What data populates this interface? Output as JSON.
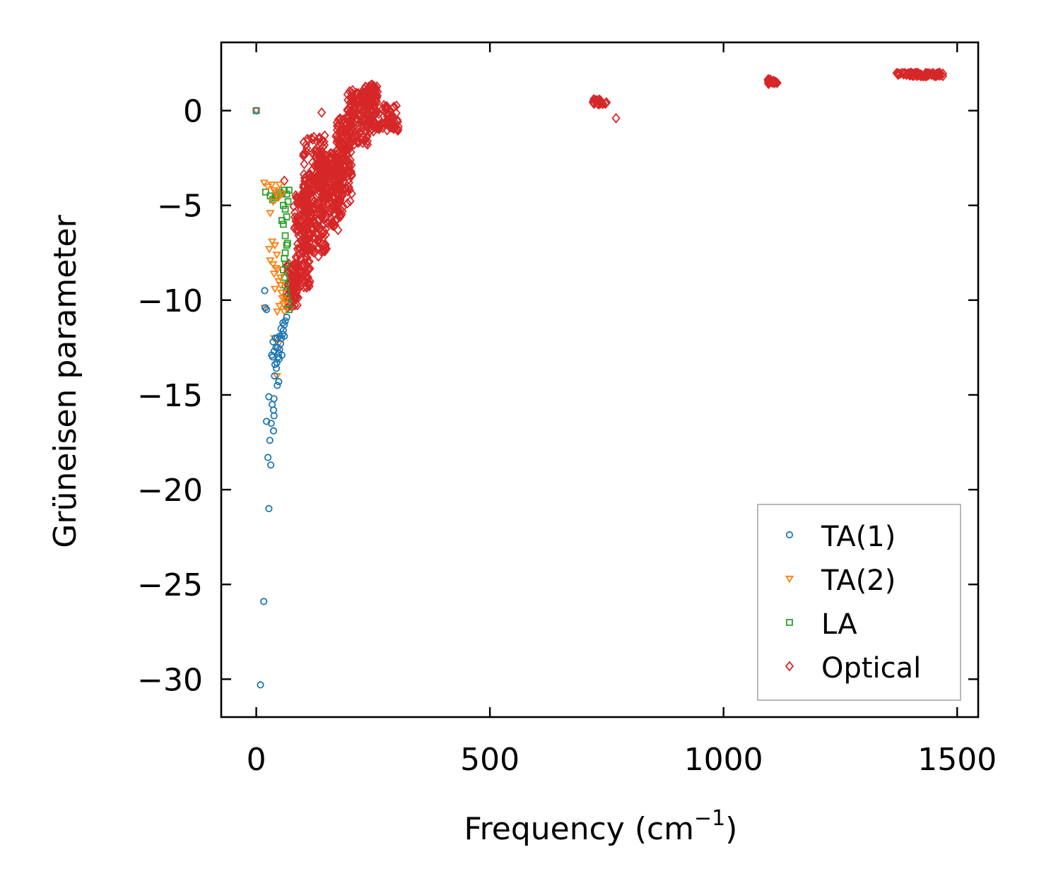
{
  "chart_data": {
    "type": "scatter",
    "title": "",
    "xlabel": "Frequency (cm",
    "xlabel_sup": "−1",
    "xlabel_suffix": ")",
    "ylabel": "Grüneisen parameter",
    "xlim": [
      -75,
      1545
    ],
    "ylim": [
      -32,
      3.6
    ],
    "xticks": [
      0,
      500,
      1000,
      1500
    ],
    "xtick_labels": [
      "0",
      "500",
      "1000",
      "1500"
    ],
    "yticks": [
      0,
      -5,
      -10,
      -15,
      -20,
      -25,
      -30
    ],
    "ytick_labels": [
      "0",
      "−5",
      "−10",
      "−15",
      "−20",
      "−25",
      "−30"
    ],
    "legend_position": "lower-right",
    "series": [
      {
        "name": "TA(1)",
        "marker": "circle",
        "color": "#1f77b4",
        "points": [
          [
            0,
            0
          ],
          [
            9,
            -30.3
          ],
          [
            16,
            -25.9
          ],
          [
            27,
            -21.0
          ],
          [
            31,
            -18.7
          ],
          [
            25,
            -18.3
          ],
          [
            29,
            -17.4
          ],
          [
            37,
            -16.9
          ],
          [
            22,
            -16.4
          ],
          [
            32,
            -16.5
          ],
          [
            38,
            -16.1
          ],
          [
            37,
            -15.8
          ],
          [
            27,
            -15.1
          ],
          [
            38,
            -15.2
          ],
          [
            34,
            -15.5
          ],
          [
            45,
            -14.5
          ],
          [
            48,
            -14.3
          ],
          [
            19,
            -10.4
          ],
          [
            18,
            -9.5
          ],
          [
            22,
            -10.5
          ],
          [
            35,
            -13.0
          ],
          [
            38,
            -12.7
          ],
          [
            42,
            -12.5
          ],
          [
            44,
            -13.3
          ],
          [
            47,
            -13.0
          ],
          [
            50,
            -12.6
          ],
          [
            52,
            -12.3
          ],
          [
            54,
            -12.0
          ],
          [
            56,
            -11.8
          ],
          [
            58,
            -11.6
          ],
          [
            60,
            -11.3
          ],
          [
            62,
            -11.1
          ],
          [
            65,
            -10.9
          ],
          [
            45,
            -12.0
          ],
          [
            48,
            -12.8
          ],
          [
            40,
            -13.4
          ],
          [
            43,
            -13.6
          ],
          [
            36,
            -12.2
          ],
          [
            41,
            -12.0
          ],
          [
            50,
            -11.9
          ],
          [
            53,
            -11.5
          ],
          [
            57,
            -11.2
          ],
          [
            33,
            -12.9
          ],
          [
            39,
            -14.0
          ],
          [
            46,
            -12.5
          ],
          [
            55,
            -12.9
          ],
          [
            49,
            -13.1
          ],
          [
            60,
            -11.9
          ]
        ]
      },
      {
        "name": "TA(2)",
        "marker": "triangle",
        "color": "#ff7f0e",
        "points": [
          [
            0,
            0
          ],
          [
            17,
            -3.8
          ],
          [
            25,
            -4.0
          ],
          [
            33,
            -3.9
          ],
          [
            38,
            -4.2
          ],
          [
            42,
            -4.3
          ],
          [
            47,
            -4.6
          ],
          [
            30,
            -5.4
          ],
          [
            36,
            -4.8
          ],
          [
            28,
            -7.3
          ],
          [
            34,
            -6.9
          ],
          [
            40,
            -7.1
          ],
          [
            30,
            -7.9
          ],
          [
            36,
            -8.1
          ],
          [
            42,
            -8.3
          ],
          [
            38,
            -8.6
          ],
          [
            45,
            -8.4
          ],
          [
            48,
            -9.0
          ],
          [
            52,
            -9.2
          ],
          [
            54,
            -9.6
          ],
          [
            56,
            -9.9
          ],
          [
            58,
            -10.2
          ],
          [
            50,
            -10.3
          ],
          [
            45,
            -10.6
          ],
          [
            18,
            -10.4
          ],
          [
            60,
            -10.6
          ],
          [
            62,
            -10.0
          ],
          [
            44,
            -7.6
          ],
          [
            40,
            -9.4
          ],
          [
            52,
            -8.8
          ],
          [
            55,
            -4.4
          ],
          [
            50,
            -3.9
          ],
          [
            44,
            -14.0
          ],
          [
            48,
            -12.3
          ],
          [
            39,
            -12.0
          ]
        ]
      },
      {
        "name": "LA",
        "marker": "square",
        "color": "#2ca02c",
        "points": [
          [
            0,
            0
          ],
          [
            20,
            -4.3
          ],
          [
            30,
            -4.5
          ],
          [
            35,
            -4.7
          ],
          [
            40,
            -4.6
          ],
          [
            45,
            -4.5
          ],
          [
            50,
            -4.3
          ],
          [
            55,
            -4.4
          ],
          [
            60,
            -4.2
          ],
          [
            65,
            -4.4
          ],
          [
            70,
            -4.2
          ],
          [
            58,
            -5.0
          ],
          [
            62,
            -5.2
          ],
          [
            65,
            -5.6
          ],
          [
            58,
            -6.0
          ],
          [
            62,
            -6.6
          ],
          [
            65,
            -7.1
          ],
          [
            62,
            -7.5
          ],
          [
            60,
            -7.8
          ],
          [
            58,
            -8.4
          ],
          [
            60,
            -8.8
          ],
          [
            62,
            -9.2
          ],
          [
            64,
            -9.6
          ],
          [
            66,
            -9.9
          ],
          [
            68,
            -10.2
          ],
          [
            70,
            -10.5
          ],
          [
            55,
            -5.8
          ],
          [
            68,
            -4.8
          ],
          [
            63,
            -8.1
          ],
          [
            67,
            -7.0
          ]
        ]
      },
      {
        "name": "Optical",
        "marker": "diamond",
        "color": "#d62728",
        "points": [
          [
            140,
            -0.1
          ],
          [
            60,
            -3.7
          ],
          [
            100,
            -8.1
          ],
          [
            150,
            -7.3
          ],
          [
            133,
            -7.7
          ],
          [
            148,
            -7.1
          ],
          [
            175,
            -6.3
          ],
          [
            770,
            -0.4
          ],
          [
            72,
            -10.3
          ],
          [
            80,
            -9.5
          ],
          [
            90,
            -8.8
          ],
          [
            110,
            -7.2
          ]
        ],
        "clusters": [
          {
            "x": [
              65,
              90
            ],
            "y": [
              -10.4,
              -8.0
            ],
            "n": 70
          },
          {
            "x": [
              80,
              115
            ],
            "y": [
              -9.4,
              -4.2
            ],
            "n": 160
          },
          {
            "x": [
              100,
              150
            ],
            "y": [
              -7.5,
              -1.3
            ],
            "n": 260
          },
          {
            "x": [
              140,
              185
            ],
            "y": [
              -6.1,
              -2.2
            ],
            "n": 170
          },
          {
            "x": [
              170,
              205
            ],
            "y": [
              -4.9,
              -0.3
            ],
            "n": 150
          },
          {
            "x": [
              195,
              245
            ],
            "y": [
              -1.8,
              1.2
            ],
            "n": 140
          },
          {
            "x": [
              230,
              260
            ],
            "y": [
              0.2,
              1.4
            ],
            "n": 60
          },
          {
            "x": [
              245,
              305
            ],
            "y": [
              -1.1,
              0.3
            ],
            "n": 80
          },
          {
            "x": [
              720,
              750
            ],
            "y": [
              0.3,
              0.6
            ],
            "n": 25
          },
          {
            "x": [
              1095,
              1115
            ],
            "y": [
              1.4,
              1.7
            ],
            "n": 20
          },
          {
            "x": [
              1370,
              1470
            ],
            "y": [
              1.8,
              2.0
            ],
            "n": 80
          }
        ]
      }
    ]
  }
}
